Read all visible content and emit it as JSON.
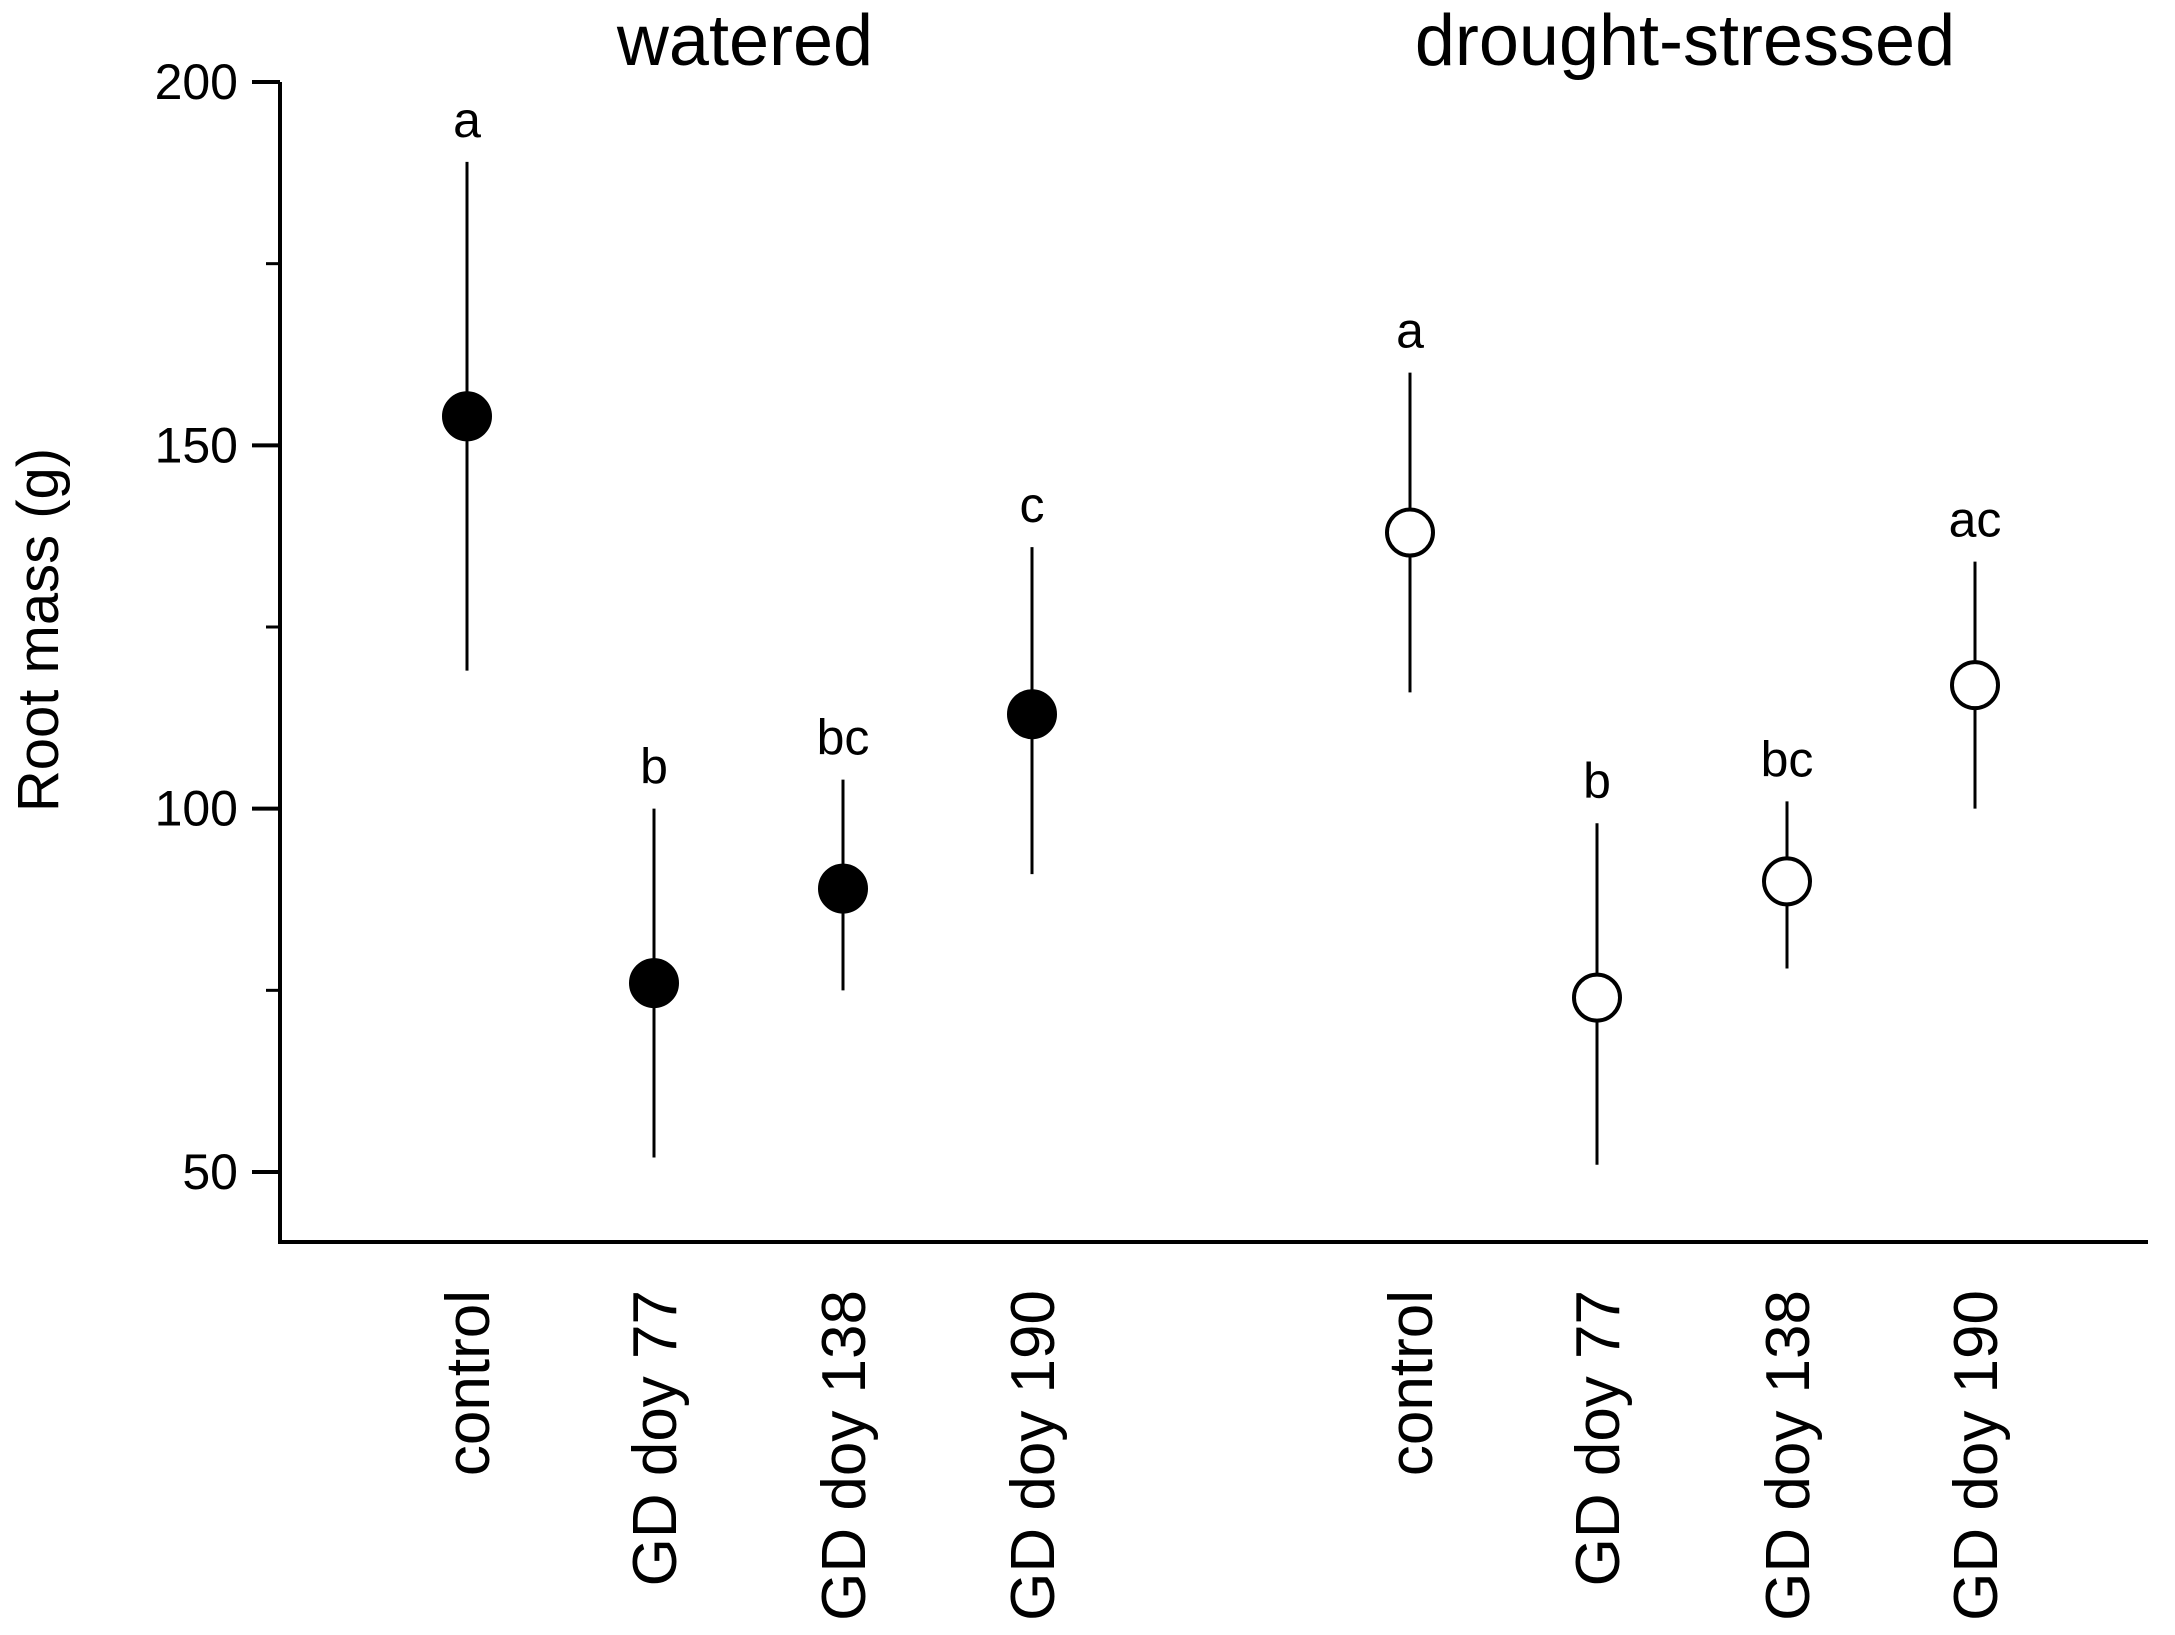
{
  "chart_data": {
    "type": "scatter",
    "ylabel": "Root mass (g)",
    "ylim": [
      40,
      200
    ],
    "yticks": [
      50,
      100,
      150,
      200
    ],
    "categories": [
      "control",
      "GD doy 77",
      "GD doy 138",
      "GD doy 190"
    ],
    "series": [
      {
        "name": "watered",
        "marker": "filled-circle",
        "points": [
          {
            "category": "control",
            "mean": 154,
            "lower": 119,
            "upper": 189,
            "letter": "a"
          },
          {
            "category": "GD doy 77",
            "mean": 76,
            "lower": 52,
            "upper": 100,
            "letter": "b"
          },
          {
            "category": "GD doy 138",
            "mean": 89,
            "lower": 75,
            "upper": 104,
            "letter": "bc"
          },
          {
            "category": "GD doy 190",
            "mean": 113,
            "lower": 91,
            "upper": 136,
            "letter": "c"
          }
        ]
      },
      {
        "name": "drought-stressed",
        "marker": "open-circle",
        "points": [
          {
            "category": "control",
            "mean": 138,
            "lower": 116,
            "upper": 160,
            "letter": "a"
          },
          {
            "category": "GD doy 77",
            "mean": 74,
            "lower": 51,
            "upper": 98,
            "letter": "b"
          },
          {
            "category": "GD doy 138",
            "mean": 90,
            "lower": 78,
            "upper": 101,
            "letter": "bc"
          },
          {
            "category": "GD doy 190",
            "mean": 117,
            "lower": 100,
            "upper": 134,
            "letter": "ac"
          }
        ]
      }
    ]
  }
}
